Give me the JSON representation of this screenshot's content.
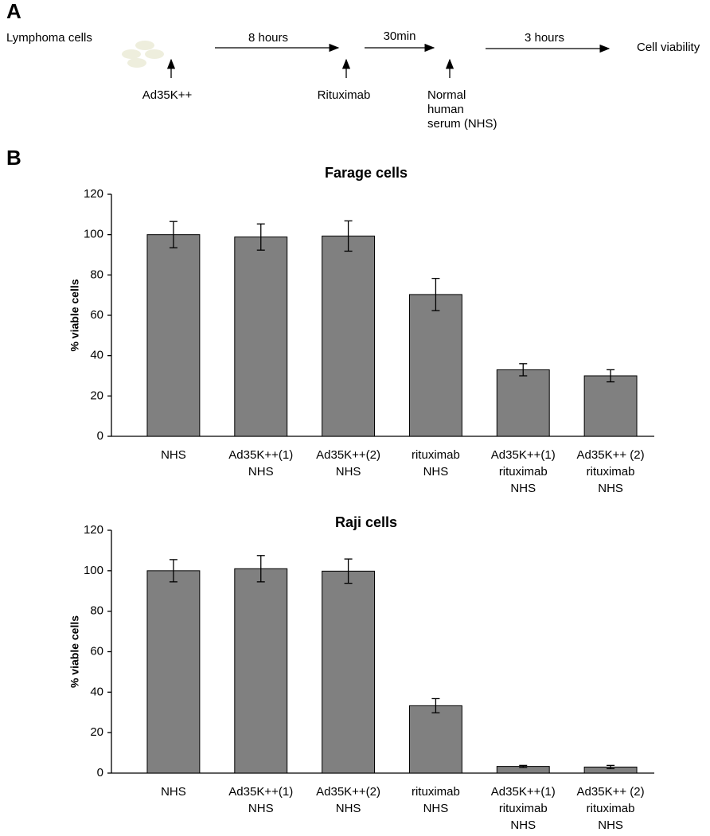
{
  "panel_a": {
    "label": "A",
    "cells": "Lymphoma cells",
    "additions": [
      [
        "Ad35K++"
      ],
      [
        "Rituximab"
      ],
      [
        "Normal",
        "human",
        "serum (NHS)"
      ]
    ],
    "durations": [
      "8 hours",
      "30min",
      "3 hours"
    ],
    "result": "Cell viability"
  },
  "panel_b": {
    "label": "B"
  },
  "chart_data": [
    {
      "type": "bar",
      "title": "Farage cells",
      "ylabel": "% viable cells",
      "categories": [
        [
          "NHS"
        ],
        [
          "Ad35K++(1)",
          "NHS"
        ],
        [
          "Ad35K++(2)",
          "NHS"
        ],
        [
          "rituximab",
          "NHS"
        ],
        [
          "Ad35K++(1)",
          "rituximab",
          "NHS"
        ],
        [
          "Ad35K++ (2)",
          "rituximab",
          "NHS"
        ]
      ],
      "values": [
        100,
        98.8,
        99.3,
        70.3,
        33,
        30
      ],
      "errors": [
        6.5,
        6.5,
        7.5,
        8,
        3,
        3
      ],
      "color": "#808080",
      "ylim": [
        0,
        120
      ],
      "yticks": [
        0,
        20,
        40,
        60,
        80,
        100,
        120
      ]
    },
    {
      "type": "bar",
      "title": "Raji cells",
      "ylabel": "% viable cells",
      "categories": [
        [
          "NHS"
        ],
        [
          "Ad35K++(1)",
          "NHS"
        ],
        [
          "Ad35K++(2)",
          "NHS"
        ],
        [
          "rituximab",
          "NHS"
        ],
        [
          "Ad35K++(1)",
          "rituximab",
          "NHS"
        ],
        [
          "Ad35K++ (2)",
          "rituximab",
          "NHS"
        ]
      ],
      "values": [
        100,
        101,
        99.8,
        33.3,
        3.3,
        3
      ],
      "errors": [
        5.5,
        6.5,
        6,
        3.5,
        0.5,
        0.8
      ],
      "color": "#808080",
      "ylim": [
        0,
        120
      ],
      "yticks": [
        0,
        20,
        40,
        60,
        80,
        100,
        120
      ]
    }
  ]
}
